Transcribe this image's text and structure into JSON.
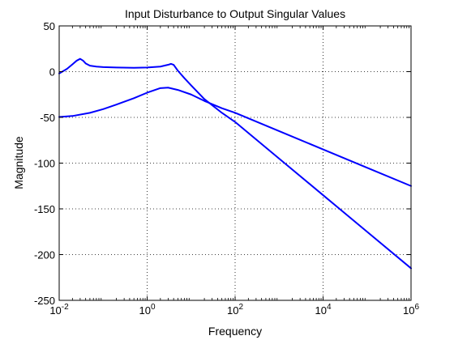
{
  "chart_data": {
    "type": "line",
    "title": "Input Disturbance to Output Singular Values",
    "xlabel": "Frequency",
    "ylabel": "Magnitude",
    "xscale": "log",
    "xlim": [
      0.01,
      1000000
    ],
    "ylim": [
      -250,
      50
    ],
    "grid": true,
    "x_ticks": [
      {
        "value": 0.01,
        "base": "10",
        "exp": "-2"
      },
      {
        "value": 1,
        "base": "10",
        "exp": "0"
      },
      {
        "value": 100,
        "base": "10",
        "exp": "2"
      },
      {
        "value": 10000,
        "base": "10",
        "exp": "4"
      },
      {
        "value": 1000000,
        "base": "10",
        "exp": "6"
      }
    ],
    "y_ticks": [
      {
        "value": 50,
        "label": "50"
      },
      {
        "value": 0,
        "label": "0"
      },
      {
        "value": -50,
        "label": "-50"
      },
      {
        "value": -100,
        "label": "-100"
      },
      {
        "value": -150,
        "label": "-150"
      },
      {
        "value": -200,
        "label": "-200"
      },
      {
        "value": -250,
        "label": "-250"
      }
    ],
    "line_color": "#0000ff",
    "series": [
      {
        "x": [
          0.01,
          0.015,
          0.02,
          0.025,
          0.03,
          0.035,
          0.04,
          0.05,
          0.07,
          0.1,
          0.2,
          0.5,
          1,
          2,
          3,
          3.5,
          4,
          5,
          7,
          10,
          20,
          50,
          100,
          1000,
          10000,
          100000,
          1000000
        ],
        "y": [
          -2,
          3,
          8,
          12,
          14,
          12,
          9,
          6.5,
          5.5,
          5,
          4.5,
          4.2,
          4.5,
          5.5,
          7.5,
          8.5,
          7.5,
          1,
          -7,
          -15,
          -30,
          -45,
          -55,
          -95,
          -135,
          -175,
          -215
        ]
      },
      {
        "x": [
          0.01,
          0.02,
          0.05,
          0.1,
          0.2,
          0.5,
          1,
          2,
          3,
          5,
          10,
          20,
          50,
          100,
          1000,
          10000,
          100000,
          1000000
        ],
        "y": [
          -49.5,
          -48.5,
          -45,
          -41,
          -36,
          -29,
          -23,
          -18,
          -17.5,
          -20,
          -25,
          -32,
          -40,
          -45,
          -65,
          -85,
          -105,
          -125
        ]
      }
    ]
  }
}
